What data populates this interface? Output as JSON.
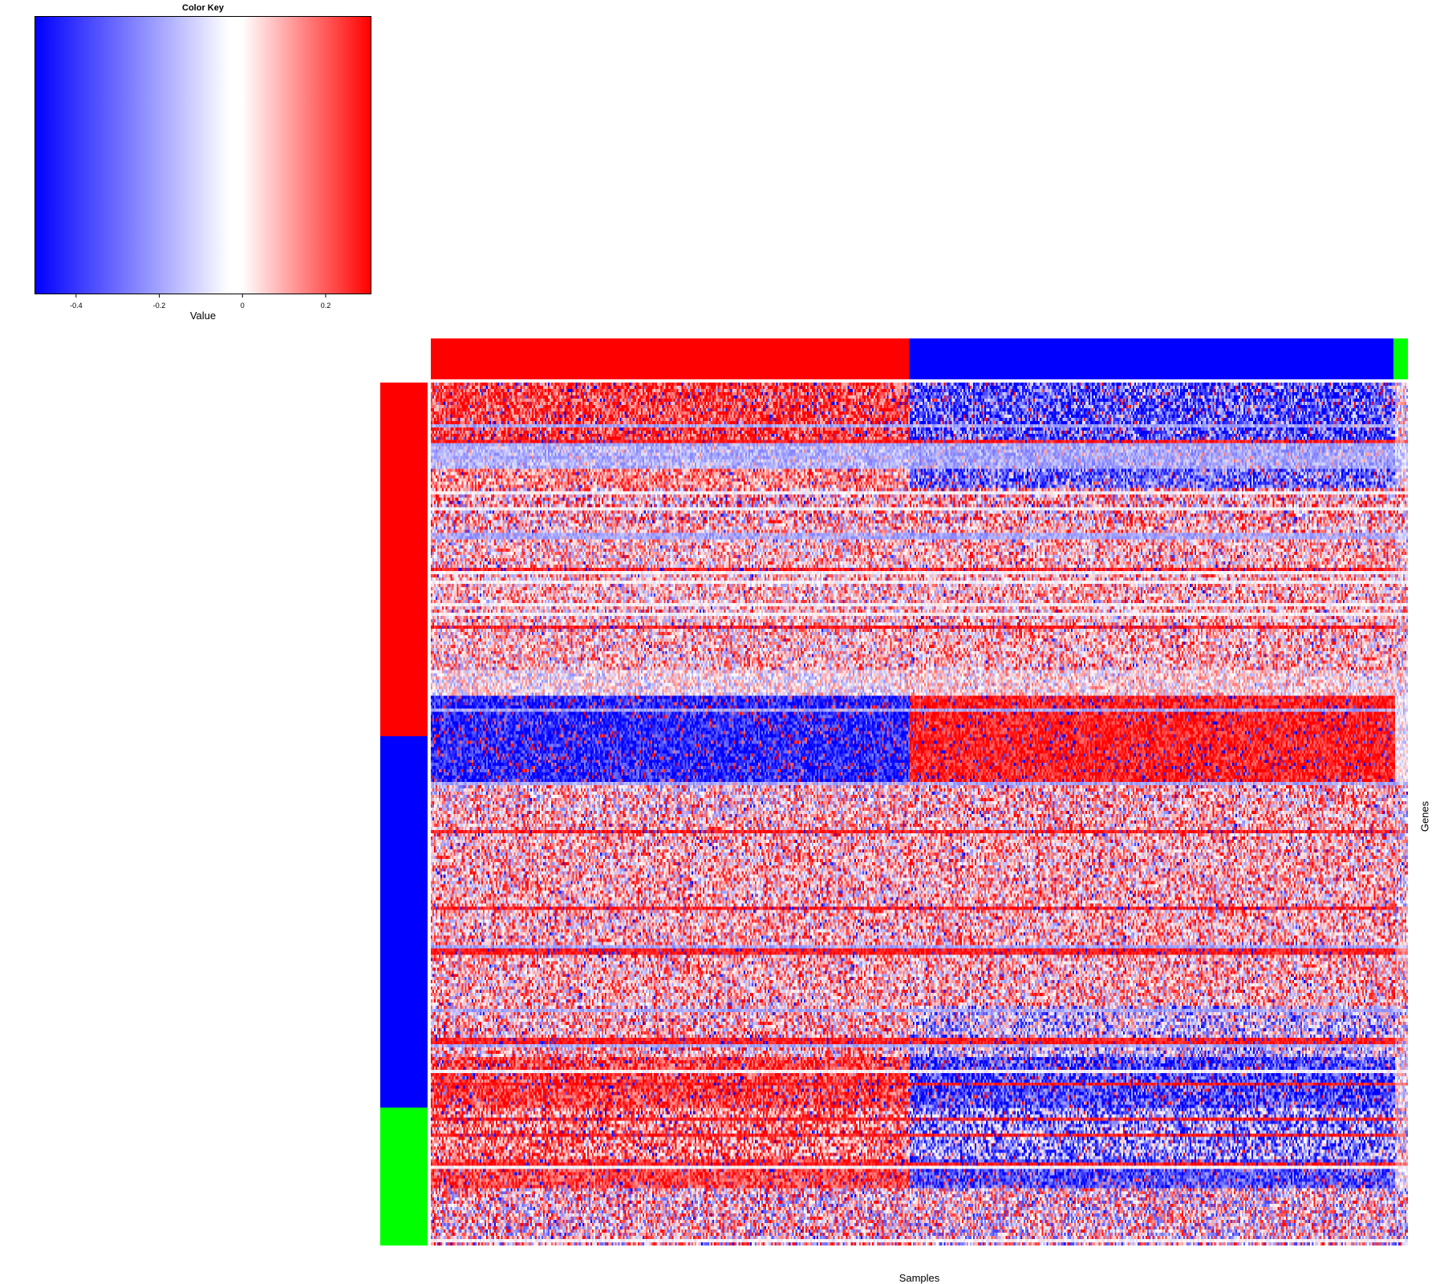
{
  "chart_data": {
    "type": "heatmap",
    "title": "",
    "xlabel": "Samples",
    "ylabel": "Genes",
    "color_key": {
      "title": "Color Key",
      "xlabel": "Value",
      "range": [
        -0.5,
        0.31
      ],
      "low_color": "#0000ff",
      "mid_color": "#ffffff",
      "high_color": "#ff0000",
      "ticks": [
        {
          "value": -0.4,
          "label": "-0.4"
        },
        {
          "value": -0.2,
          "label": "-0.2"
        },
        {
          "value": 0,
          "label": "0"
        },
        {
          "value": 0.2,
          "label": "0.2"
        }
      ]
    },
    "column_groups": [
      {
        "color": "#ff0000",
        "fraction": 0.489
      },
      {
        "color": "#0000ff",
        "fraction": 0.496
      },
      {
        "color": "#00ff00",
        "fraction": 0.015
      }
    ],
    "row_groups": [
      {
        "color": "#ff0000",
        "fraction": 0.41
      },
      {
        "color": "#0000ff",
        "fraction": 0.43
      },
      {
        "color": "#00ff00",
        "fraction": 0.16
      }
    ],
    "grid": false
  }
}
